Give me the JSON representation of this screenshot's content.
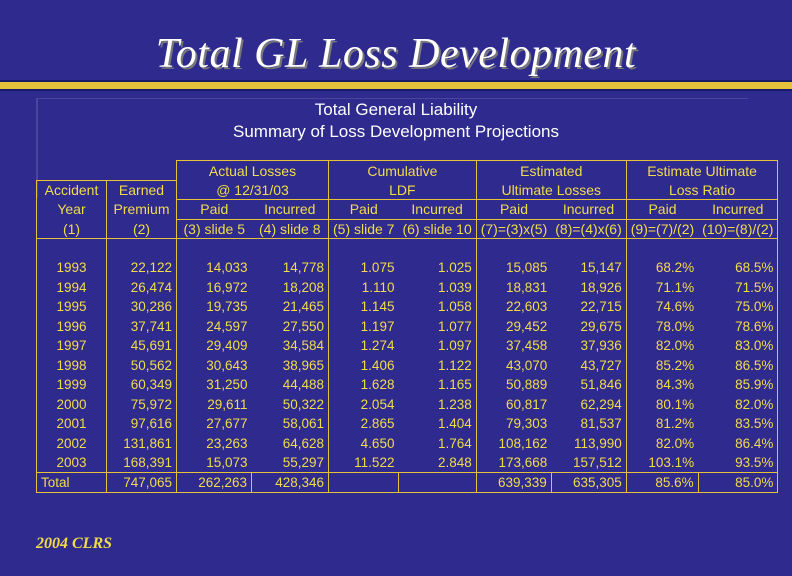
{
  "slide": {
    "title": "Total GL Loss Development",
    "footer": "2004 CLRS"
  },
  "table": {
    "title": "Total General Liability",
    "subtitle": "Summary of Loss Development Projections",
    "group_headers": {
      "actual_l1": "Actual Losses",
      "actual_l2": "@ 12/31/03",
      "ldf_l1": "Cumulative",
      "ldf_l2": "LDF",
      "ult_l1": "Estimated",
      "ult_l2": "Ultimate Losses",
      "lr_l1": "Estimate Ultimate",
      "lr_l2": "Loss Ratio"
    },
    "col_headers": {
      "ay_l1": "Accident",
      "ay_l2": "Year",
      "ay_l3": "(1)",
      "ep_l1": "Earned",
      "ep_l2": "Premium",
      "ep_l3": "(2)",
      "paid": "Paid",
      "incurred": "Incurred",
      "c3": "(3) slide 5",
      "c4": "(4) slide 8",
      "c5": "(5) slide 7",
      "c6": "(6) slide 10",
      "c7": "(7)=(3)x(5)",
      "c8": "(8)=(4)x(6)",
      "c9": "(9)=(7)/(2)",
      "c10": "(10)=(8)/(2)"
    },
    "rows": [
      [
        "1993",
        "22,122",
        "14,033",
        "14,778",
        "1.075",
        "1.025",
        "15,085",
        "15,147",
        "68.2%",
        "68.5%"
      ],
      [
        "1994",
        "26,474",
        "16,972",
        "18,208",
        "1.110",
        "1.039",
        "18,831",
        "18,926",
        "71.1%",
        "71.5%"
      ],
      [
        "1995",
        "30,286",
        "19,735",
        "21,465",
        "1.145",
        "1.058",
        "22,603",
        "22,715",
        "74.6%",
        "75.0%"
      ],
      [
        "1996",
        "37,741",
        "24,597",
        "27,550",
        "1.197",
        "1.077",
        "29,452",
        "29,675",
        "78.0%",
        "78.6%"
      ],
      [
        "1997",
        "45,691",
        "29,409",
        "34,584",
        "1.274",
        "1.097",
        "37,458",
        "37,936",
        "82.0%",
        "83.0%"
      ],
      [
        "1998",
        "50,562",
        "30,643",
        "38,965",
        "1.406",
        "1.122",
        "43,070",
        "43,727",
        "85.2%",
        "86.5%"
      ],
      [
        "1999",
        "60,349",
        "31,250",
        "44,488",
        "1.628",
        "1.165",
        "50,889",
        "51,846",
        "84.3%",
        "85.9%"
      ],
      [
        "2000",
        "75,972",
        "29,611",
        "50,322",
        "2.054",
        "1.238",
        "60,817",
        "62,294",
        "80.1%",
        "82.0%"
      ],
      [
        "2001",
        "97,616",
        "27,677",
        "58,061",
        "2.865",
        "1.404",
        "79,303",
        "81,537",
        "81.2%",
        "83.5%"
      ],
      [
        "2002",
        "131,861",
        "23,263",
        "64,628",
        "4.650",
        "1.764",
        "108,162",
        "113,990",
        "82.0%",
        "86.4%"
      ],
      [
        "2003",
        "168,391",
        "15,073",
        "55,297",
        "11.522",
        "2.848",
        "173,668",
        "157,512",
        "103.1%",
        "93.5%"
      ]
    ],
    "total": [
      "Total",
      "747,065",
      "262,263",
      "428,346",
      "",
      "",
      "639,339",
      "635,305",
      "85.6%",
      "85.0%"
    ]
  }
}
